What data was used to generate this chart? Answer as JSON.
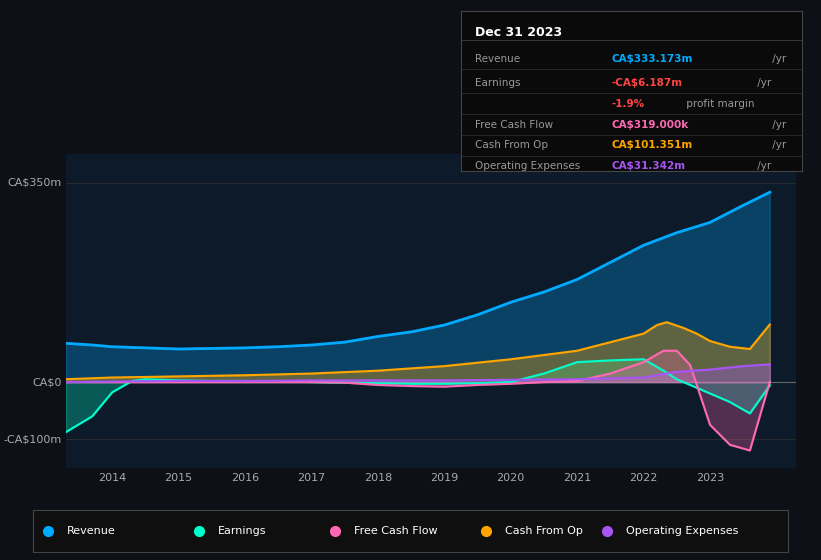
{
  "bg_color": "#0d1117",
  "plot_bg_color": "#0d1a2a",
  "ylim": [
    -150,
    400
  ],
  "ylabel_color": "#aaaaaa",
  "xmin": 2013.3,
  "xmax": 2024.3,
  "colors": {
    "revenue": "#00aaff",
    "earnings": "#00ffcc",
    "fcf": "#ff69b4",
    "cashop": "#ffa500",
    "opex": "#a855f7"
  },
  "legend": [
    {
      "label": "Revenue",
      "color": "#00aaff"
    },
    {
      "label": "Earnings",
      "color": "#00ffcc"
    },
    {
      "label": "Free Cash Flow",
      "color": "#ff69b4"
    },
    {
      "label": "Cash From Op",
      "color": "#ffa500"
    },
    {
      "label": "Operating Expenses",
      "color": "#a855f7"
    }
  ],
  "info_rows": [
    {
      "label": "Revenue",
      "value": "CA$333.173m",
      "unit": " /yr",
      "color": "#00aaff"
    },
    {
      "label": "Earnings",
      "value": "-CA$6.187m",
      "unit": " /yr",
      "color": "#ff4444"
    },
    {
      "label": "",
      "value": "-1.9%",
      "unit": " profit margin",
      "color": "#ff4444"
    },
    {
      "label": "Free Cash Flow",
      "value": "CA$319.000k",
      "unit": " /yr",
      "color": "#ff69b4"
    },
    {
      "label": "Cash From Op",
      "value": "CA$101.351m",
      "unit": " /yr",
      "color": "#ffa500"
    },
    {
      "label": "Operating Expenses",
      "value": "CA$31.342m",
      "unit": " /yr",
      "color": "#a855f7"
    }
  ],
  "revenue": [
    [
      2013.3,
      68
    ],
    [
      2013.7,
      65
    ],
    [
      2014.0,
      62
    ],
    [
      2014.5,
      60
    ],
    [
      2015.0,
      58
    ],
    [
      2015.5,
      59
    ],
    [
      2016.0,
      60
    ],
    [
      2016.5,
      62
    ],
    [
      2017.0,
      65
    ],
    [
      2017.5,
      70
    ],
    [
      2018.0,
      80
    ],
    [
      2018.5,
      88
    ],
    [
      2019.0,
      100
    ],
    [
      2019.5,
      118
    ],
    [
      2020.0,
      140
    ],
    [
      2020.5,
      158
    ],
    [
      2021.0,
      180
    ],
    [
      2021.5,
      210
    ],
    [
      2022.0,
      240
    ],
    [
      2022.5,
      262
    ],
    [
      2023.0,
      280
    ],
    [
      2023.5,
      310
    ],
    [
      2023.9,
      333
    ]
  ],
  "earnings": [
    [
      2013.3,
      -88
    ],
    [
      2013.7,
      -60
    ],
    [
      2014.0,
      -18
    ],
    [
      2014.3,
      2
    ],
    [
      2014.5,
      5
    ],
    [
      2015.0,
      3
    ],
    [
      2015.5,
      2
    ],
    [
      2016.0,
      2
    ],
    [
      2016.5,
      1
    ],
    [
      2017.0,
      0
    ],
    [
      2017.5,
      -1
    ],
    [
      2018.0,
      -2
    ],
    [
      2018.5,
      -3
    ],
    [
      2019.0,
      -3
    ],
    [
      2019.5,
      -2
    ],
    [
      2020.0,
      0
    ],
    [
      2020.5,
      15
    ],
    [
      2021.0,
      35
    ],
    [
      2021.5,
      38
    ],
    [
      2022.0,
      40
    ],
    [
      2022.3,
      20
    ],
    [
      2022.5,
      5
    ],
    [
      2022.8,
      -10
    ],
    [
      2023.0,
      -20
    ],
    [
      2023.3,
      -35
    ],
    [
      2023.6,
      -55
    ],
    [
      2023.9,
      -6
    ]
  ],
  "fcf": [
    [
      2013.3,
      0
    ],
    [
      2014.0,
      0
    ],
    [
      2015.0,
      0
    ],
    [
      2016.0,
      0
    ],
    [
      2017.0,
      0
    ],
    [
      2017.5,
      -1
    ],
    [
      2018.0,
      -5
    ],
    [
      2018.5,
      -7
    ],
    [
      2019.0,
      -8
    ],
    [
      2019.5,
      -5
    ],
    [
      2020.0,
      -3
    ],
    [
      2020.5,
      0
    ],
    [
      2021.0,
      2
    ],
    [
      2021.5,
      15
    ],
    [
      2022.0,
      35
    ],
    [
      2022.3,
      55
    ],
    [
      2022.5,
      55
    ],
    [
      2022.7,
      30
    ],
    [
      2023.0,
      -75
    ],
    [
      2023.3,
      -110
    ],
    [
      2023.6,
      -120
    ],
    [
      2023.9,
      0.3
    ]
  ],
  "cashop": [
    [
      2013.3,
      5
    ],
    [
      2014.0,
      8
    ],
    [
      2015.0,
      10
    ],
    [
      2016.0,
      12
    ],
    [
      2017.0,
      15
    ],
    [
      2018.0,
      20
    ],
    [
      2019.0,
      28
    ],
    [
      2020.0,
      40
    ],
    [
      2021.0,
      55
    ],
    [
      2021.5,
      70
    ],
    [
      2022.0,
      85
    ],
    [
      2022.2,
      100
    ],
    [
      2022.35,
      105
    ],
    [
      2022.6,
      95
    ],
    [
      2022.8,
      85
    ],
    [
      2023.0,
      72
    ],
    [
      2023.3,
      62
    ],
    [
      2023.6,
      58
    ],
    [
      2023.9,
      101
    ]
  ],
  "opex": [
    [
      2013.3,
      0
    ],
    [
      2014.0,
      1
    ],
    [
      2015.0,
      2
    ],
    [
      2016.0,
      2
    ],
    [
      2017.0,
      3
    ],
    [
      2018.0,
      3
    ],
    [
      2019.0,
      3
    ],
    [
      2020.0,
      4
    ],
    [
      2021.0,
      5
    ],
    [
      2022.0,
      8
    ],
    [
      2022.5,
      18
    ],
    [
      2023.0,
      22
    ],
    [
      2023.5,
      28
    ],
    [
      2023.9,
      31
    ]
  ]
}
